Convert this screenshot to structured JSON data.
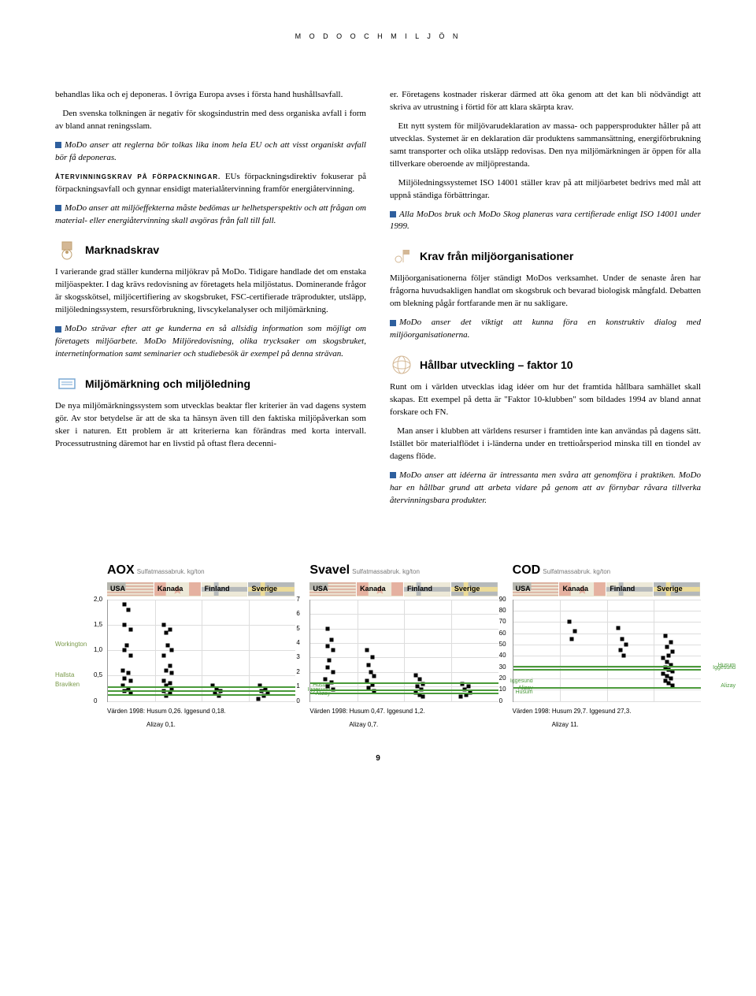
{
  "header": "M O D O   O C H   M I L J Ö N",
  "left": {
    "p1": "behandlas lika och ej deponeras. I övriga Europa avses i första hand hushållsavfall.",
    "p2": "Den svenska tolkningen är negativ för skogsindustrin med dess organiska avfall i form av bland annat reningsslam.",
    "p3": "MoDo anser att reglerna bör tolkas lika inom hela EU och att visst organiskt avfall bör få deponeras.",
    "sh1": "ÅTERVINNINGSKRAV PÅ FÖRPACKNINGAR.",
    "p4": " EUs förpackningsdirektiv fokuserar på förpackningsavfall och gynnar ensidigt materialåtervinning framför energiåtervinning.",
    "p5": "MoDo anser att miljöeffekterna måste bedömas ur helhetsperspektiv och att frågan om material- eller energiåtervinning skall avgöras från fall till fall.",
    "h_marknad": "Marknadskrav",
    "p6": "I varierande grad ställer kunderna miljökrav på MoDo. Tidigare handlade det om enstaka miljöaspekter. I dag krävs redovisning av företagets hela miljöstatus. Dominerande frågor är skogsskötsel, miljöcertifiering av skogsbruket, FSC-certifierade träprodukter, utsläpp, miljöledningssystem, resursförbrukning, livscykelanalyser och miljömärkning.",
    "p7": "MoDo strävar efter att ge kunderna en så allsidig information som möjligt om företagets miljöarbete. MoDo Miljöredovisning, olika trycksaker om skogsbruket, internetinformation samt seminarier och studiebesök är exempel på denna strävan.",
    "h_miljomark": "Miljömärkning och miljöledning",
    "p8": "De nya miljömärkningssystem som utvecklas beaktar fler kriterier än vad dagens system gör. Av stor betydelse är att de ska ta hänsyn även till den faktiska miljöpåverkan som sker i naturen. Ett problem är att kriterierna kan förändras med korta intervall. Processutrustning däremot har en livstid på oftast flera decenni-"
  },
  "right": {
    "p1": "er. Företagens kostnader riskerar därmed att öka genom att det kan bli nödvändigt att skriva av utrustning i förtid för att klara skärpta krav.",
    "p2": "Ett nytt system för miljövarudeklaration av massa- och pappersprodukter håller på att utvecklas. Systemet är en deklaration där produktens sammansättning, energiförbrukning samt transporter och olika utsläpp redovisas. Den nya miljömärkningen är öppen för alla tillverkare oberoende av miljöprestanda.",
    "p3": "Miljöledningssystemet ISO 14001 ställer krav på att miljöarbetet bedrivs med mål att uppnå ständiga förbättringar.",
    "p4": "Alla MoDos bruk och MoDo Skog planeras vara certifierade enligt ISO 14001 under 1999.",
    "h_krav": "Krav från miljöorganisationer",
    "p5": "Miljöorganisationerna följer ständigt MoDos verksamhet. Under de senaste åren har frågorna huvudsakligen handlat om skogsbruk och bevarad biologisk mångfald. Debatten om blekning pågår fortfarande men är nu sakligare.",
    "p6": "MoDo anser det viktigt att kunna föra en konstruktiv dialog med miljöorganisationerna.",
    "h_hallbar": "Hållbar utveckling – faktor 10",
    "p7": "Runt om i världen utvecklas idag idéer om hur det framtida hållbara samhället skall skapas. Ett exempel på detta är \"Faktor 10-klubben\" som bildades 1994 av bland annat forskare och FN.",
    "p8": "Man anser i klubben att världens resurser i framtiden inte kan användas på dagens sätt. Istället bör materialflödet i i-länderna under en trettioårsperiod minska till en tiondel av dagens flöde.",
    "p9": "MoDo anser att idéerna är intressanta men svåra att genomföra i praktiken. MoDo har en hållbar grund att arbeta vidare på genom att av förnybar råvara tillverka återvinningsbara produkter."
  },
  "left_labels": [
    "Workington",
    "Hallsta",
    "Braviken"
  ],
  "countries": [
    "USA",
    "Kanada",
    "Finland",
    "Sverige"
  ],
  "charts": {
    "aox": {
      "title": "AOX",
      "subtitle": "Sulfatmassabruk. kg/ton",
      "yticks": [
        "2,0",
        "1,5",
        "1,0",
        "0,5",
        "0"
      ],
      "ymax": 2.0,
      "lines": [
        {
          "label": "Husum",
          "y": 0.26
        },
        {
          "label": "Iggesund",
          "y": 0.18
        },
        {
          "label": "Alizay",
          "y": 0.1
        }
      ],
      "points": [
        {
          "x": 9,
          "y": 1.9
        },
        {
          "x": 11,
          "y": 1.8
        },
        {
          "x": 9,
          "y": 1.5
        },
        {
          "x": 12,
          "y": 1.4
        },
        {
          "x": 10,
          "y": 1.1
        },
        {
          "x": 9,
          "y": 1.0
        },
        {
          "x": 12,
          "y": 0.9
        },
        {
          "x": 8,
          "y": 0.6
        },
        {
          "x": 11,
          "y": 0.55
        },
        {
          "x": 9,
          "y": 0.45
        },
        {
          "x": 12,
          "y": 0.4
        },
        {
          "x": 8,
          "y": 0.3
        },
        {
          "x": 11,
          "y": 0.25
        },
        {
          "x": 9,
          "y": 0.2
        },
        {
          "x": 12,
          "y": 0.15
        },
        {
          "x": 30,
          "y": 1.5
        },
        {
          "x": 33,
          "y": 1.4
        },
        {
          "x": 31,
          "y": 1.35
        },
        {
          "x": 32,
          "y": 1.1
        },
        {
          "x": 34,
          "y": 1.0
        },
        {
          "x": 30,
          "y": 0.9
        },
        {
          "x": 33,
          "y": 0.7
        },
        {
          "x": 31,
          "y": 0.6
        },
        {
          "x": 34,
          "y": 0.55
        },
        {
          "x": 30,
          "y": 0.4
        },
        {
          "x": 33,
          "y": 0.35
        },
        {
          "x": 31,
          "y": 0.3
        },
        {
          "x": 34,
          "y": 0.25
        },
        {
          "x": 30,
          "y": 0.2
        },
        {
          "x": 33,
          "y": 0.15
        },
        {
          "x": 31,
          "y": 0.1
        },
        {
          "x": 56,
          "y": 0.3
        },
        {
          "x": 58,
          "y": 0.25
        },
        {
          "x": 60,
          "y": 0.2
        },
        {
          "x": 57,
          "y": 0.15
        },
        {
          "x": 59,
          "y": 0.1
        },
        {
          "x": 81,
          "y": 0.3
        },
        {
          "x": 84,
          "y": 0.25
        },
        {
          "x": 82,
          "y": 0.2
        },
        {
          "x": 85,
          "y": 0.15
        },
        {
          "x": 83,
          "y": 0.1
        },
        {
          "x": 80,
          "y": 0.05
        }
      ],
      "caption1": "Värden 1998: Husum 0,26. Iggesund 0,18.",
      "caption2": "Alizay 0,1."
    },
    "svavel": {
      "title": "Svavel",
      "subtitle": "Sulfatmassabruk. kg/ton",
      "yticks": [
        "7",
        "6",
        "5",
        "4",
        "3",
        "2",
        "1",
        "0"
      ],
      "ymax": 7,
      "lines": [
        {
          "label": "Iggesund",
          "y": 1.2
        },
        {
          "label": "Husum",
          "y": 0.47
        },
        {
          "label": "Alizay",
          "y": 0.7
        }
      ],
      "points": [
        {
          "x": 9,
          "y": 5
        },
        {
          "x": 11,
          "y": 4.2
        },
        {
          "x": 9,
          "y": 3.8
        },
        {
          "x": 12,
          "y": 3.5
        },
        {
          "x": 10,
          "y": 2.8
        },
        {
          "x": 9,
          "y": 2.3
        },
        {
          "x": 12,
          "y": 2.0
        },
        {
          "x": 8,
          "y": 1.5
        },
        {
          "x": 11,
          "y": 1.3
        },
        {
          "x": 9,
          "y": 1.0
        },
        {
          "x": 12,
          "y": 0.8
        },
        {
          "x": 30,
          "y": 3.5
        },
        {
          "x": 33,
          "y": 3.0
        },
        {
          "x": 31,
          "y": 2.5
        },
        {
          "x": 32,
          "y": 2.0
        },
        {
          "x": 34,
          "y": 1.7
        },
        {
          "x": 30,
          "y": 1.4
        },
        {
          "x": 33,
          "y": 1.1
        },
        {
          "x": 31,
          "y": 0.9
        },
        {
          "x": 34,
          "y": 0.7
        },
        {
          "x": 56,
          "y": 1.8
        },
        {
          "x": 58,
          "y": 1.5
        },
        {
          "x": 60,
          "y": 1.2
        },
        {
          "x": 57,
          "y": 1.0
        },
        {
          "x": 59,
          "y": 0.8
        },
        {
          "x": 56,
          "y": 0.6
        },
        {
          "x": 58,
          "y": 0.4
        },
        {
          "x": 60,
          "y": 0.3
        },
        {
          "x": 81,
          "y": 1.2
        },
        {
          "x": 84,
          "y": 1.0
        },
        {
          "x": 82,
          "y": 0.8
        },
        {
          "x": 85,
          "y": 0.6
        },
        {
          "x": 83,
          "y": 0.4
        },
        {
          "x": 80,
          "y": 0.3
        }
      ],
      "caption1": "Värden 1998: Husum 0,47. Iggesund 1,2.",
      "caption2": "Alizay 0,7."
    },
    "cod": {
      "title": "COD",
      "subtitle": "Sulfatmassabruk. kg/ton",
      "yticks": [
        "90",
        "80",
        "70",
        "60",
        "50",
        "40",
        "30",
        "20",
        "10",
        "0"
      ],
      "ymax": 90,
      "lines": [
        {
          "label": "Husum",
          "y": 29.7
        },
        {
          "label": "Iggesund",
          "y": 27.3
        },
        {
          "label": "Alizay",
          "y": 11
        }
      ],
      "points": [
        {
          "x": 30,
          "y": 70
        },
        {
          "x": 33,
          "y": 62
        },
        {
          "x": 31,
          "y": 55
        },
        {
          "x": 56,
          "y": 65
        },
        {
          "x": 58,
          "y": 55
        },
        {
          "x": 60,
          "y": 50
        },
        {
          "x": 57,
          "y": 45
        },
        {
          "x": 59,
          "y": 40
        },
        {
          "x": 81,
          "y": 58
        },
        {
          "x": 84,
          "y": 52
        },
        {
          "x": 82,
          "y": 48
        },
        {
          "x": 85,
          "y": 44
        },
        {
          "x": 83,
          "y": 40
        },
        {
          "x": 80,
          "y": 38
        },
        {
          "x": 82,
          "y": 35
        },
        {
          "x": 84,
          "y": 32
        },
        {
          "x": 81,
          "y": 30
        },
        {
          "x": 83,
          "y": 28
        },
        {
          "x": 85,
          "y": 26
        },
        {
          "x": 80,
          "y": 24
        },
        {
          "x": 82,
          "y": 22
        },
        {
          "x": 84,
          "y": 20
        },
        {
          "x": 81,
          "y": 18
        },
        {
          "x": 83,
          "y": 16
        },
        {
          "x": 85,
          "y": 14
        }
      ],
      "caption1": "Värden 1998: Husum 29,7. Iggesund 27,3.",
      "caption2": "Alizay 11."
    }
  },
  "page": "9"
}
